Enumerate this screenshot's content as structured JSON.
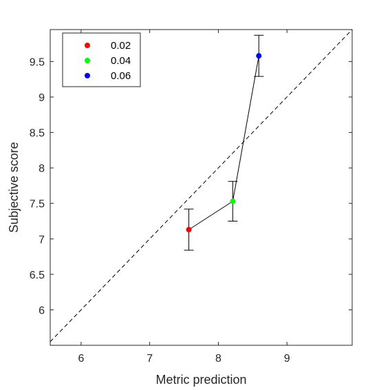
{
  "chart_data": {
    "type": "scatter",
    "xlabel": "Metric prediction",
    "ylabel": "Subjective score",
    "xlim": [
      5.55,
      9.95
    ],
    "ylim": [
      5.5,
      9.95
    ],
    "xticks": [
      "6",
      "7",
      "8",
      "9"
    ],
    "yticks": [
      "6",
      "6.5",
      "7",
      "7.5",
      "8",
      "8.5",
      "9",
      "9.5"
    ],
    "grid": false,
    "legend_position": "top-left",
    "reference_line": "y = x (dashed)",
    "series": [
      {
        "name": "0.02",
        "color": "#ff0000",
        "x": 7.57,
        "y": 7.13,
        "err_low": 6.84,
        "err_high": 7.42
      },
      {
        "name": "0.04",
        "color": "#00ff00",
        "x": 8.21,
        "y": 7.53,
        "err_low": 7.25,
        "err_high": 7.81
      },
      {
        "name": "0.06",
        "color": "#0000ff",
        "x": 8.59,
        "y": 9.58,
        "err_low": 9.29,
        "err_high": 9.87
      }
    ],
    "connecting_line_color": "#000000"
  }
}
